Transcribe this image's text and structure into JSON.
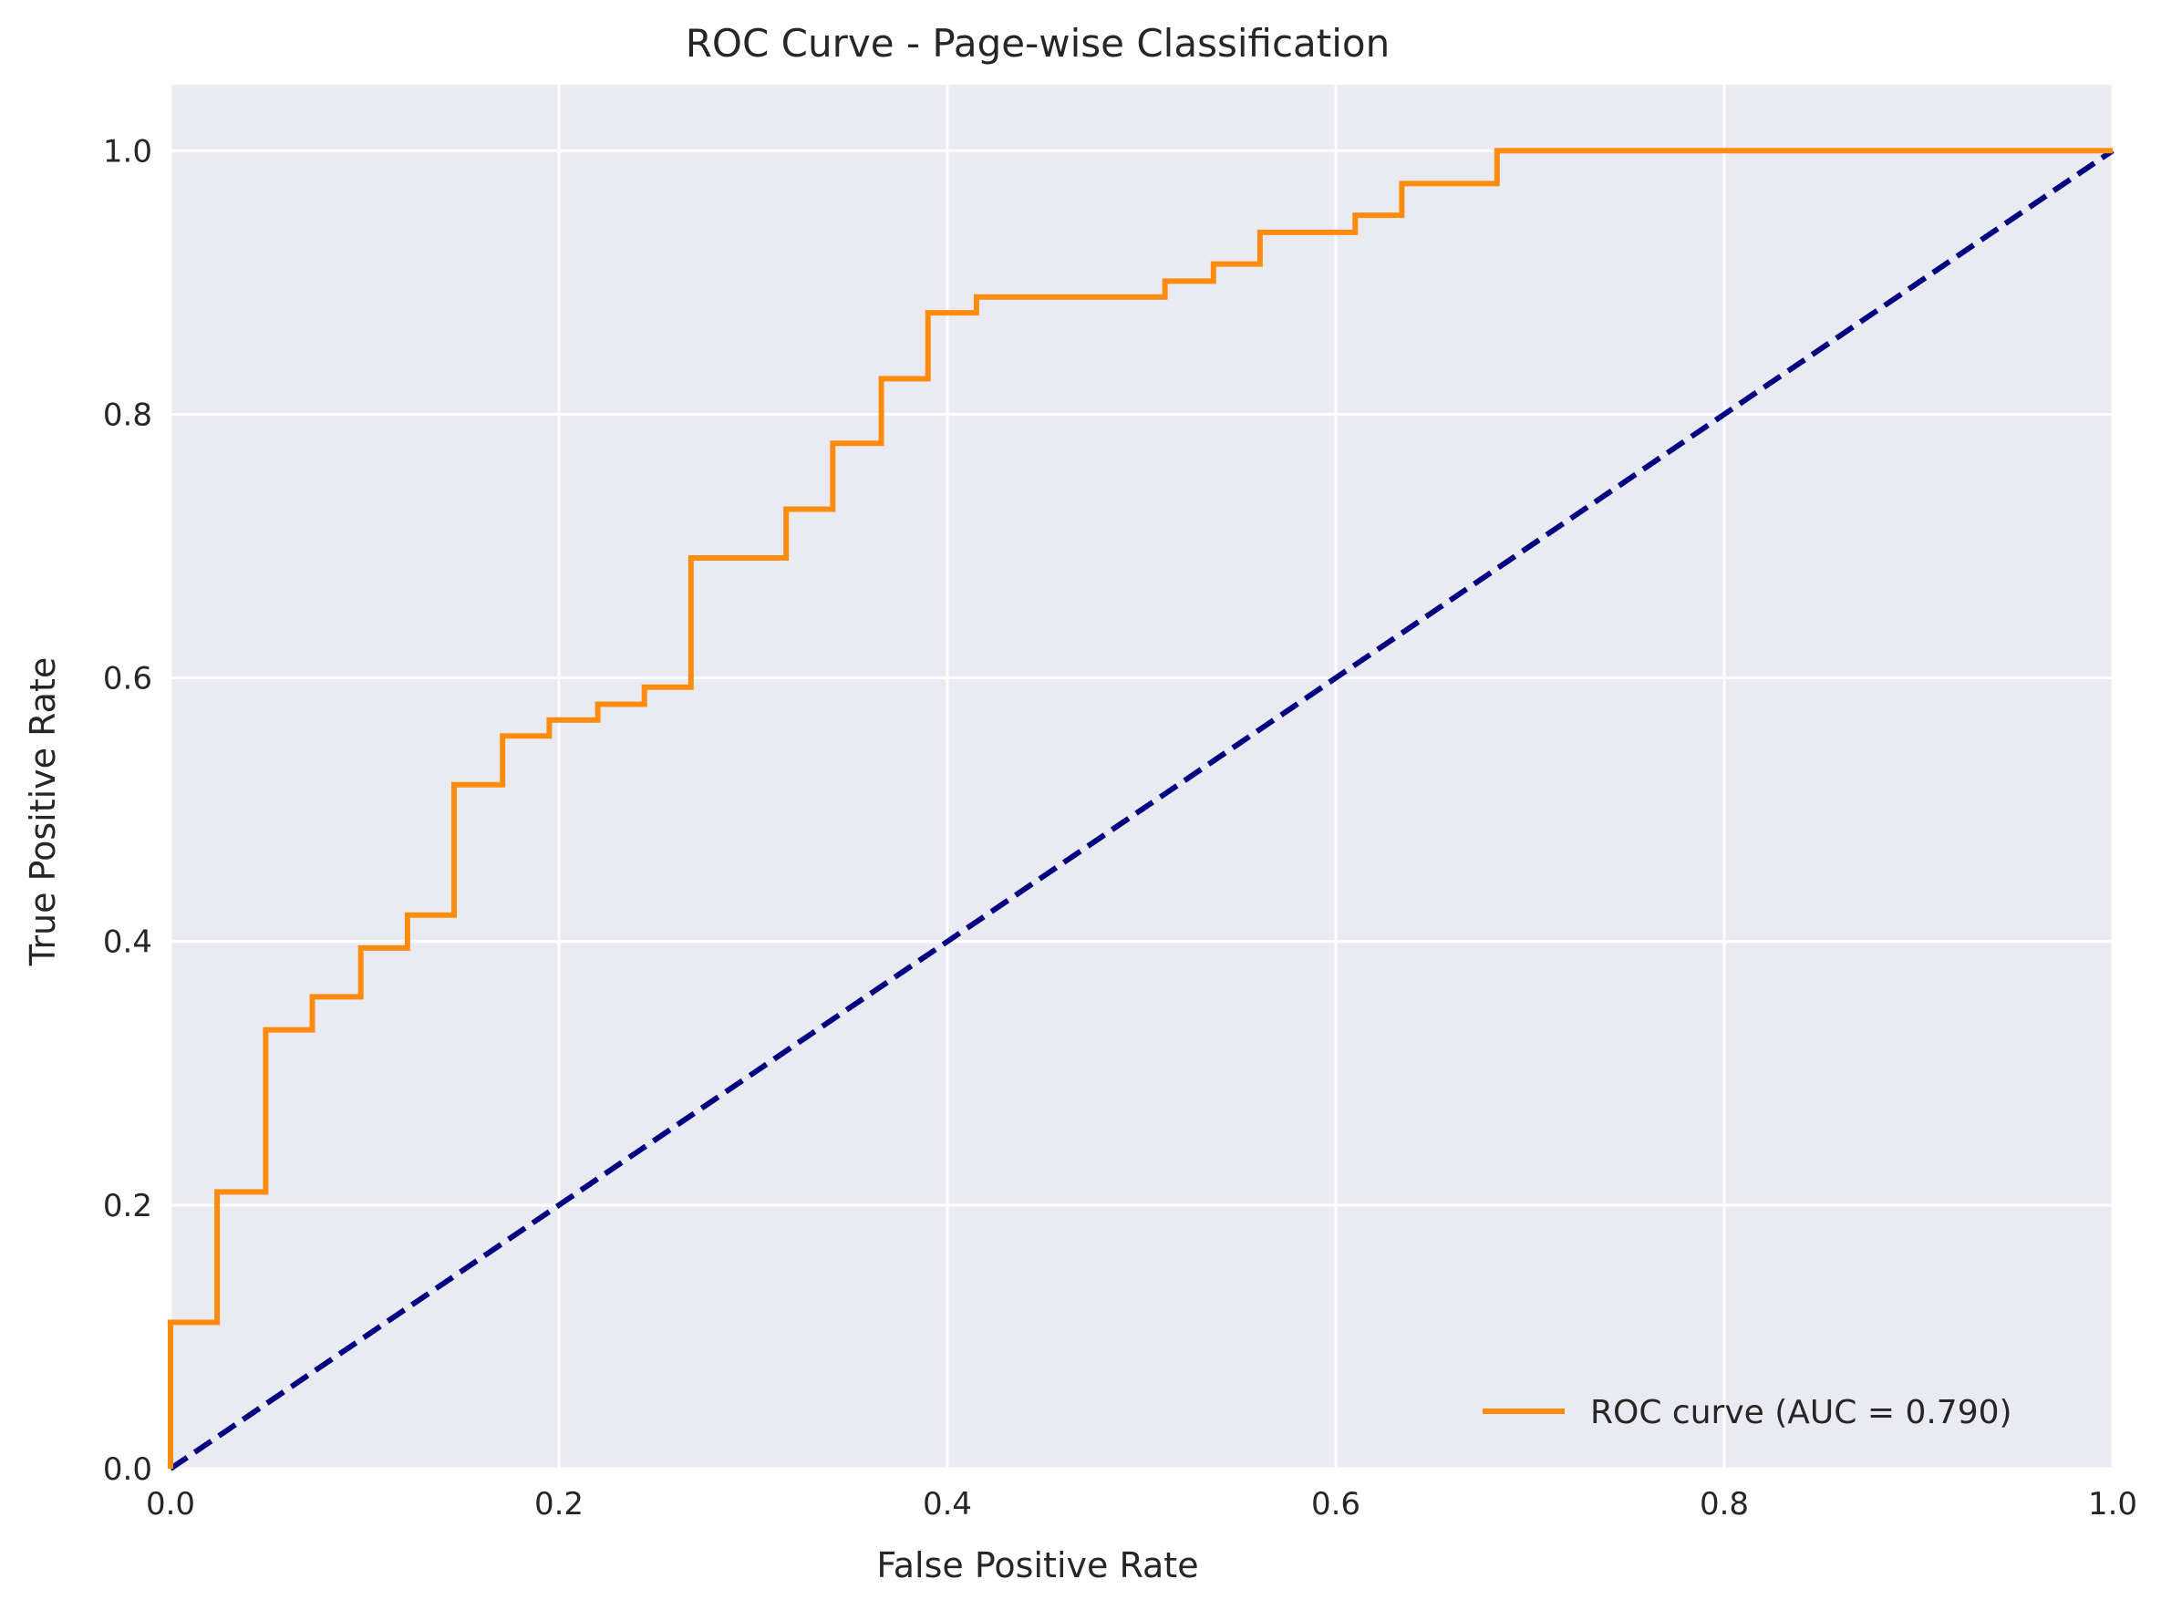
{
  "chart_data": {
    "type": "line",
    "title": "ROC Curve - Page-wise Classification",
    "xlabel": "False Positive Rate",
    "ylabel": "True Positive Rate",
    "xlim": [
      0.0,
      1.0
    ],
    "ylim": [
      0.0,
      1.05
    ],
    "xticks": [
      0.0,
      0.2,
      0.4,
      0.6,
      0.8,
      1.0
    ],
    "yticks": [
      0.0,
      0.2,
      0.4,
      0.6,
      0.8,
      1.0
    ],
    "xtick_labels": [
      "0.0",
      "0.2",
      "0.4",
      "0.6",
      "0.8",
      "1.0"
    ],
    "ytick_labels": [
      "0.0",
      "0.2",
      "0.4",
      "0.6",
      "0.8",
      "1.0"
    ],
    "grid": true,
    "legend_position": "lower-right",
    "series": [
      {
        "name": "ROC curve (AUC = 0.790)",
        "color": "#ff8c0f",
        "style": "solid",
        "x": [
          0.0,
          0.0,
          0.024,
          0.024,
          0.049,
          0.049,
          0.073,
          0.073,
          0.098,
          0.098,
          0.122,
          0.122,
          0.146,
          0.146,
          0.171,
          0.171,
          0.195,
          0.195,
          0.22,
          0.22,
          0.244,
          0.244,
          0.268,
          0.268,
          0.317,
          0.317,
          0.341,
          0.341,
          0.366,
          0.366,
          0.39,
          0.39,
          0.415,
          0.415,
          0.512,
          0.512,
          0.537,
          0.537,
          0.561,
          0.561,
          0.61,
          0.61,
          0.634,
          0.634,
          0.683,
          0.683,
          1.0
        ],
        "y": [
          0.0,
          0.111,
          0.111,
          0.21,
          0.21,
          0.333,
          0.333,
          0.358,
          0.358,
          0.395,
          0.395,
          0.42,
          0.42,
          0.519,
          0.519,
          0.556,
          0.556,
          0.568,
          0.568,
          0.58,
          0.58,
          0.593,
          0.593,
          0.691,
          0.691,
          0.728,
          0.728,
          0.778,
          0.778,
          0.827,
          0.827,
          0.877,
          0.877,
          0.889,
          0.889,
          0.901,
          0.901,
          0.914,
          0.914,
          0.938,
          0.938,
          0.951,
          0.951,
          0.975,
          0.975,
          1.0,
          1.0
        ]
      },
      {
        "name": "",
        "color": "#000080",
        "style": "dashed",
        "x": [
          0.0,
          1.0
        ],
        "y": [
          0.0,
          1.0
        ]
      }
    ]
  },
  "colors": {
    "axes_background": "#eaeaf2",
    "grid": "#ffffff",
    "text": "#262626"
  }
}
